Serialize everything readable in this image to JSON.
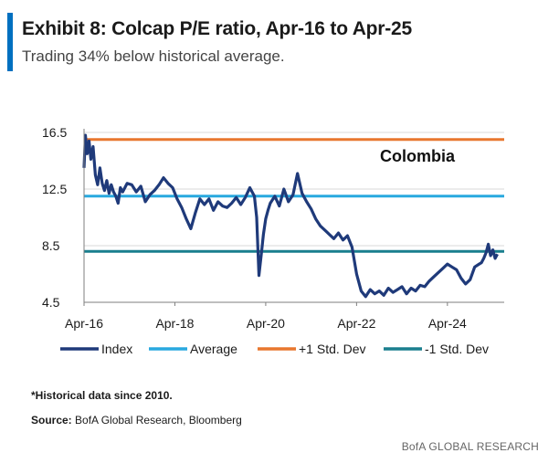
{
  "header": {
    "title": "Exhibit 8: Colcap P/E ratio, Apr-16 to Apr-25",
    "subtitle": "Trading 34% below historical average."
  },
  "footer": {
    "footnote": "*Historical data since 2010.",
    "source_label": "Source:",
    "source_text": "BofA Global Research, Bloomberg",
    "brand": "BofA GLOBAL RESEARCH"
  },
  "colors": {
    "index": "#1f3a7a",
    "average": "#29a9df",
    "plus_std": "#e8772e",
    "minus_std": "#1a7f8e",
    "accent": "#0070c0"
  },
  "chart_data": {
    "type": "line",
    "title": "Exhibit 8: Colcap P/E ratio, Apr-16 to Apr-25",
    "annotation": "Colombia",
    "xlabel": "",
    "ylabel": "",
    "ylim": [
      4.5,
      16.5
    ],
    "yticks": [
      4.5,
      8.5,
      12.5,
      16.5
    ],
    "xlim": [
      2016.25,
      2025.5
    ],
    "xticks": [
      {
        "value": 2016.25,
        "label": "Apr-16"
      },
      {
        "value": 2018.25,
        "label": "Apr-18"
      },
      {
        "value": 2020.25,
        "label": "Apr-20"
      },
      {
        "value": 2022.25,
        "label": "Apr-22"
      },
      {
        "value": 2024.25,
        "label": "Apr-24"
      }
    ],
    "legend_position": "bottom",
    "reference_lines": [
      {
        "name": "Average",
        "value": 12.0,
        "color_key": "average"
      },
      {
        "name": "+1 Std. Dev",
        "value": 16.0,
        "color_key": "plus_std"
      },
      {
        "name": "-1 Std. Dev",
        "value": 8.1,
        "color_key": "minus_std"
      }
    ],
    "series": [
      {
        "name": "Index",
        "color_key": "index",
        "x": [
          2016.25,
          2016.28,
          2016.32,
          2016.36,
          2016.4,
          2016.45,
          2016.5,
          2016.55,
          2016.6,
          2016.65,
          2016.7,
          2016.75,
          2016.8,
          2016.85,
          2016.9,
          2016.95,
          2017.0,
          2017.05,
          2017.1,
          2017.2,
          2017.3,
          2017.4,
          2017.5,
          2017.6,
          2017.7,
          2017.8,
          2017.9,
          2018.0,
          2018.1,
          2018.2,
          2018.3,
          2018.4,
          2018.5,
          2018.6,
          2018.7,
          2018.8,
          2018.9,
          2019.0,
          2019.1,
          2019.2,
          2019.3,
          2019.4,
          2019.5,
          2019.6,
          2019.7,
          2019.8,
          2019.9,
          2020.0,
          2020.05,
          2020.1,
          2020.15,
          2020.2,
          2020.25,
          2020.3,
          2020.35,
          2020.45,
          2020.55,
          2020.65,
          2020.75,
          2020.85,
          2020.95,
          2021.05,
          2021.15,
          2021.25,
          2021.35,
          2021.45,
          2021.55,
          2021.65,
          2021.75,
          2021.85,
          2021.95,
          2022.05,
          2022.15,
          2022.25,
          2022.35,
          2022.45,
          2022.55,
          2022.65,
          2022.75,
          2022.85,
          2022.95,
          2023.05,
          2023.15,
          2023.25,
          2023.35,
          2023.45,
          2023.55,
          2023.65,
          2023.75,
          2023.85,
          2023.95,
          2024.05,
          2024.15,
          2024.25,
          2024.35,
          2024.45,
          2024.55,
          2024.65,
          2024.75,
          2024.85,
          2024.95,
          2025.0,
          2025.05,
          2025.1,
          2025.15,
          2025.2,
          2025.25,
          2025.3,
          2025.35
        ],
        "values": [
          14.0,
          16.3,
          15.0,
          15.9,
          14.6,
          15.5,
          13.5,
          12.8,
          14.0,
          12.9,
          12.4,
          13.1,
          12.2,
          12.8,
          12.3,
          12.0,
          11.5,
          12.6,
          12.3,
          12.9,
          12.8,
          12.3,
          12.7,
          11.6,
          12.1,
          12.4,
          12.8,
          13.3,
          12.9,
          12.6,
          11.8,
          11.2,
          10.4,
          9.7,
          10.8,
          11.8,
          11.4,
          11.8,
          11.0,
          11.6,
          11.3,
          11.2,
          11.5,
          11.9,
          11.4,
          11.9,
          12.6,
          12.0,
          10.5,
          6.4,
          7.8,
          9.3,
          10.4,
          11.0,
          11.5,
          12.0,
          11.3,
          12.5,
          11.6,
          12.1,
          13.6,
          12.2,
          11.6,
          11.1,
          10.4,
          9.9,
          9.6,
          9.3,
          9.0,
          9.4,
          8.9,
          9.2,
          8.4,
          6.5,
          5.3,
          4.9,
          5.4,
          5.1,
          5.3,
          5.0,
          5.5,
          5.2,
          5.4,
          5.6,
          5.1,
          5.5,
          5.3,
          5.7,
          5.6,
          6.0,
          6.3,
          6.6,
          6.9,
          7.2,
          7.0,
          6.8,
          6.2,
          5.8,
          6.1,
          7.0,
          7.2,
          7.3,
          7.6,
          8.0,
          8.6,
          7.8,
          8.2,
          7.6,
          7.9
        ]
      }
    ],
    "legend": [
      {
        "label": "Index",
        "color_key": "index"
      },
      {
        "label": "Average",
        "color_key": "average"
      },
      {
        "label": "+1 Std. Dev",
        "color_key": "plus_std"
      },
      {
        "label": "-1 Std. Dev",
        "color_key": "minus_std"
      }
    ]
  }
}
